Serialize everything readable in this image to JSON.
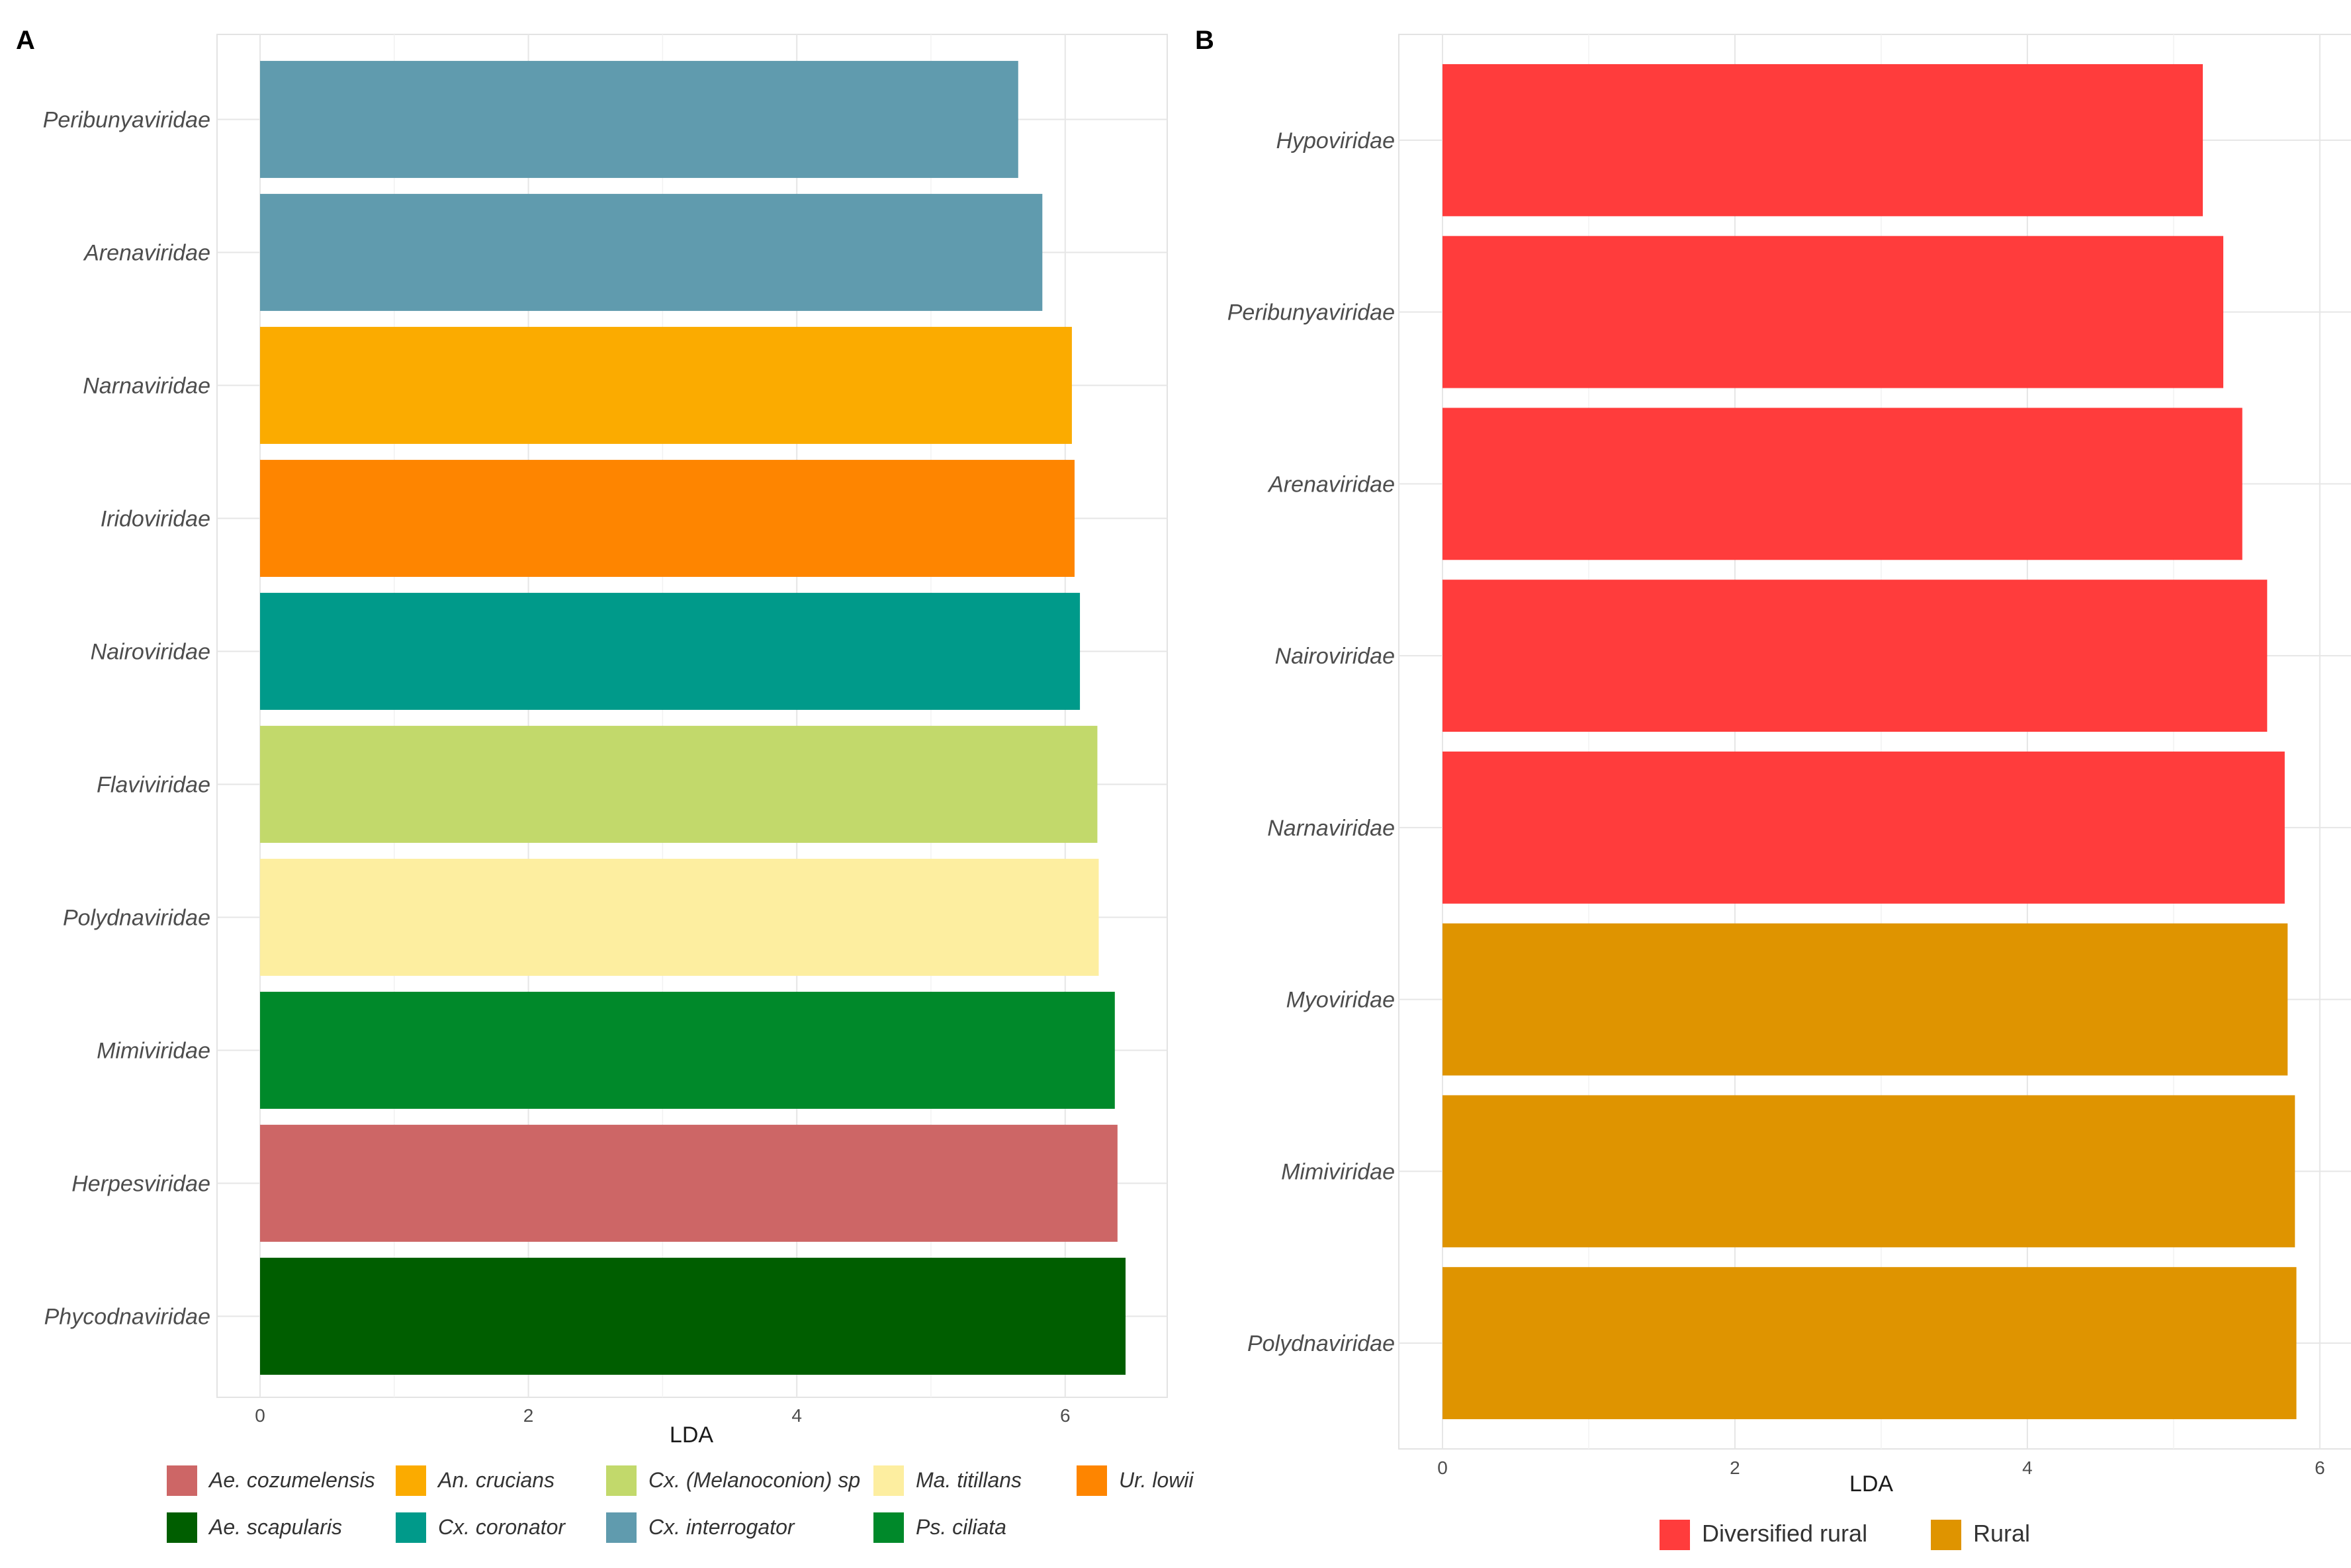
{
  "chart_data": [
    {
      "panel": "A",
      "type": "bar",
      "orientation": "horizontal",
      "xlabel": "LDA",
      "ylabel": "",
      "xlim": [
        0,
        6.8
      ],
      "xticks": [
        0,
        2,
        4,
        6
      ],
      "grid": true,
      "categories": [
        "Peribunyaviridae",
        "Arenaviridae",
        "Narnaviridae",
        "Iridoviridae",
        "Nairoviridae",
        "Flaviviridae",
        "Polydnaviridae",
        "Mimiviridae",
        "Herpesviridae",
        "Phycodnaviridae"
      ],
      "values": [
        5.65,
        5.83,
        6.05,
        6.07,
        6.11,
        6.24,
        6.25,
        6.37,
        6.39,
        6.45
      ],
      "groups": [
        "Cx. interrogator",
        "Cx. interrogator",
        "An. crucians",
        "Ur. lowii",
        "Cx. coronator",
        "Cx. (Melanoconion) sp",
        "Ma. titillans",
        "Ps. ciliata",
        "Ae. cozumelensis",
        "Ae. scapularis"
      ],
      "legend": {
        "placement": "bottom",
        "items": [
          {
            "label": "Ae. cozumelensis",
            "color": "#cd6666"
          },
          {
            "label": "An. crucians",
            "color": "#fbab00"
          },
          {
            "label": "Cx. (Melanoconion) sp",
            "color": "#c2d96b"
          },
          {
            "label": "Ma. titillans",
            "color": "#fdeea0"
          },
          {
            "label": "Ur. lowii",
            "color": "#fe8500"
          },
          {
            "label": "Ae. scapularis",
            "color": "#005e00"
          },
          {
            "label": "Cx. coronator",
            "color": "#009a8a"
          },
          {
            "label": "Cx. interrogator",
            "color": "#609bae"
          },
          {
            "label": "Ps. ciliata",
            "color": "#00892a"
          }
        ]
      }
    },
    {
      "panel": "B",
      "type": "bar",
      "orientation": "horizontal",
      "xlabel": "LDA",
      "ylabel": "",
      "xlim": [
        0,
        6.15
      ],
      "xticks": [
        0,
        2,
        4,
        6
      ],
      "grid": true,
      "categories": [
        "Hypoviridae",
        "Peribunyaviridae",
        "Arenaviridae",
        "Nairoviridae",
        "Narnaviridae",
        "Myoviridae",
        "Mimiviridae",
        "Polydnaviridae"
      ],
      "values": [
        5.2,
        5.34,
        5.47,
        5.64,
        5.76,
        5.78,
        5.83,
        5.84
      ],
      "groups": [
        "Diversified rural",
        "Diversified rural",
        "Diversified rural",
        "Diversified rural",
        "Diversified rural",
        "Rural",
        "Rural",
        "Rural"
      ],
      "legend": {
        "placement": "bottom",
        "items": [
          {
            "label": "Diversified rural",
            "color": "#ff3c3c"
          },
          {
            "label": "Rural",
            "color": "#df9400"
          }
        ]
      }
    }
  ]
}
